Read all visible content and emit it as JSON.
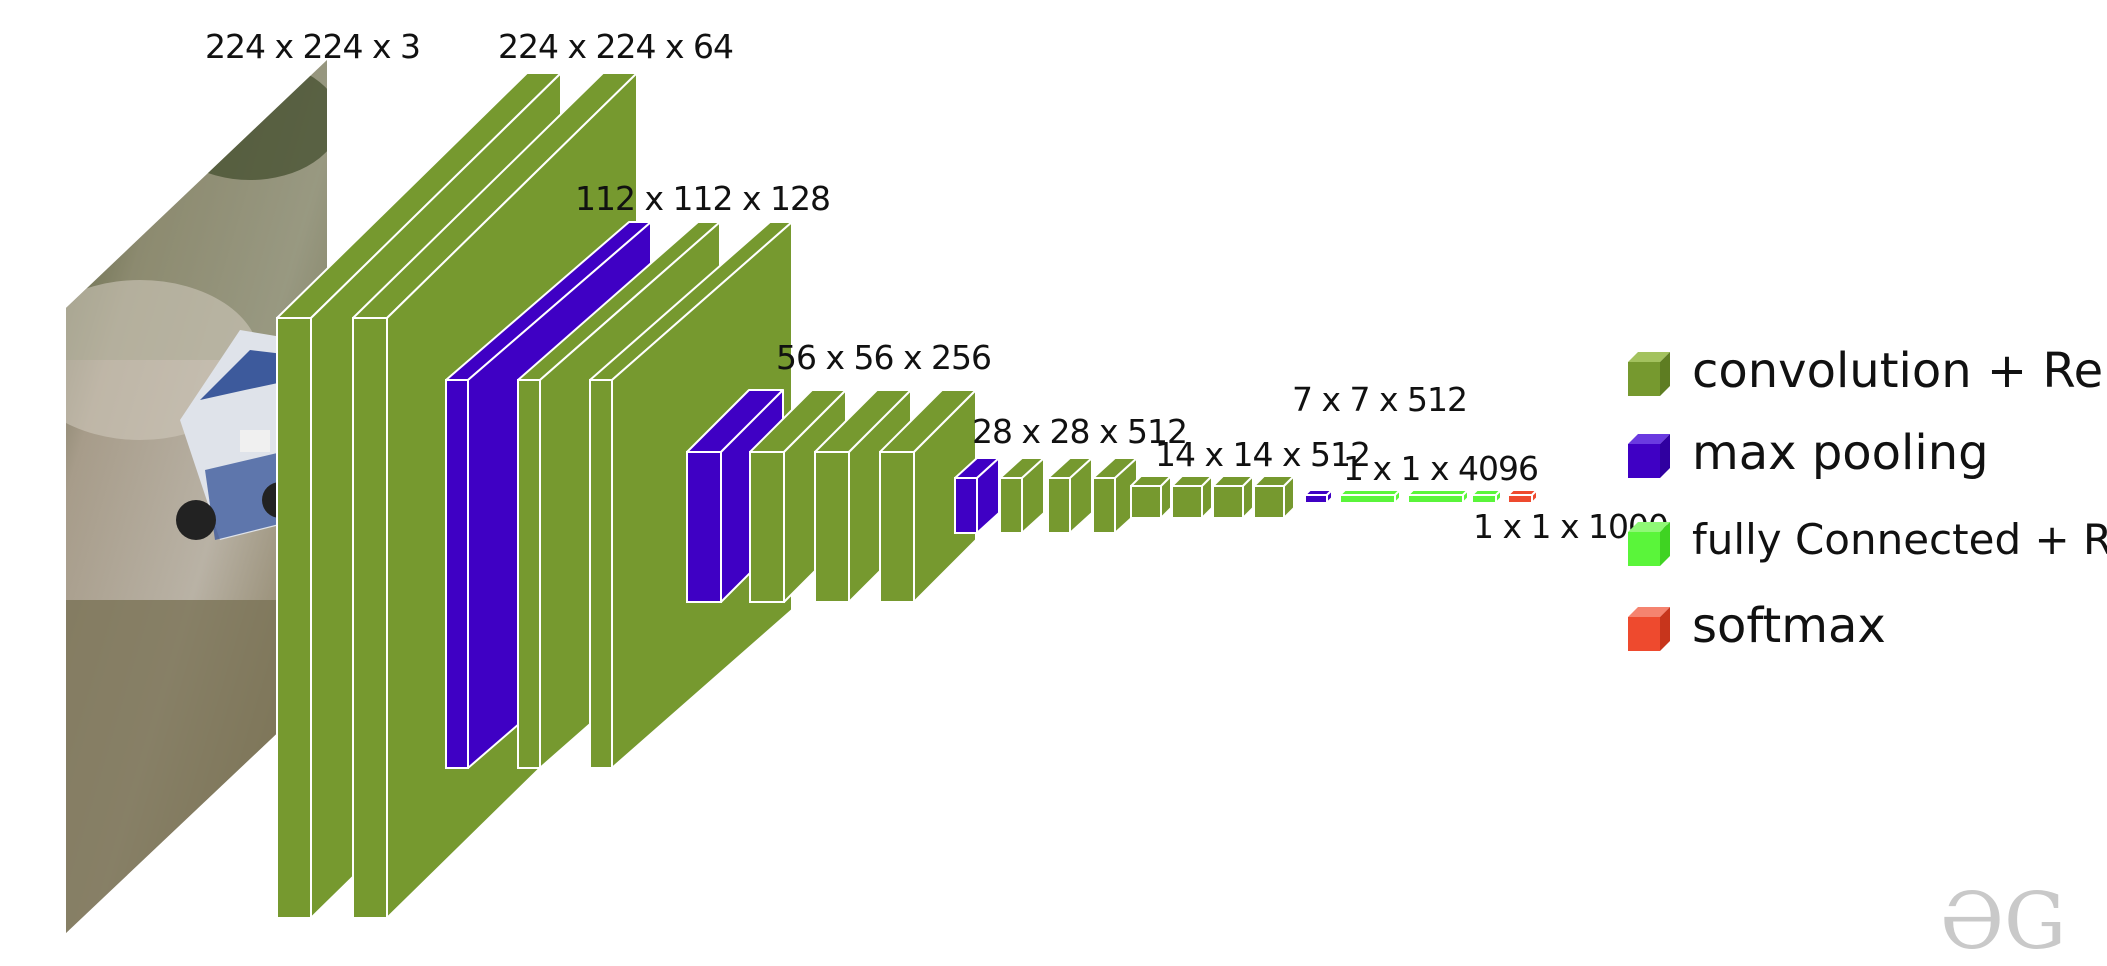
{
  "colors": {
    "conv": "#76992f",
    "pool": "#3f00c4",
    "fc": "#5af53a",
    "softmax": "#ee4a2e",
    "edge": "#ffffff",
    "logo": "#c9c9c9"
  },
  "input_image": {
    "icon": "rally-car-photo"
  },
  "dimension_labels": {
    "input": "224 x 224 x 3",
    "conv1": "224 x 224 x 64",
    "conv2": "112 x 112 x 128",
    "conv3": "56 x 56 x 256",
    "conv4": "28 x 28 x 512",
    "conv5": "14 x 14 x 512",
    "pool5": "7 x 7 x 512",
    "fc": "1 x 1 x 4096",
    "softmax": "1 x 1 x 1000"
  },
  "layers": [
    {
      "group": "conv1",
      "type": "conv"
    },
    {
      "group": "conv1",
      "type": "conv"
    },
    {
      "group": "pool1",
      "type": "pool"
    },
    {
      "group": "conv2",
      "type": "conv"
    },
    {
      "group": "conv2",
      "type": "conv"
    },
    {
      "group": "pool2",
      "type": "pool"
    },
    {
      "group": "conv3",
      "type": "conv"
    },
    {
      "group": "conv3",
      "type": "conv"
    },
    {
      "group": "conv3",
      "type": "conv"
    },
    {
      "group": "pool3",
      "type": "pool"
    },
    {
      "group": "conv4",
      "type": "conv"
    },
    {
      "group": "conv4",
      "type": "conv"
    },
    {
      "group": "conv4",
      "type": "conv"
    },
    {
      "group": "conv5",
      "type": "conv"
    },
    {
      "group": "conv5",
      "type": "conv"
    },
    {
      "group": "conv5",
      "type": "conv"
    },
    {
      "group": "conv5",
      "type": "conv"
    },
    {
      "group": "pool5",
      "type": "pool"
    },
    {
      "group": "fc6",
      "type": "fc"
    },
    {
      "group": "fc7",
      "type": "fc"
    },
    {
      "group": "fc8",
      "type": "fc"
    },
    {
      "group": "output",
      "type": "softmax"
    }
  ],
  "legend": [
    {
      "type": "conv",
      "label": "convolution + ReLU"
    },
    {
      "type": "pool",
      "label": "max pooling"
    },
    {
      "type": "fc",
      "label": "fully Connected + ReLU"
    },
    {
      "type": "softmax",
      "label": "softmax"
    }
  ],
  "logo": {
    "text": "ƏG",
    "icon": "geeksforgeeks-logo"
  }
}
